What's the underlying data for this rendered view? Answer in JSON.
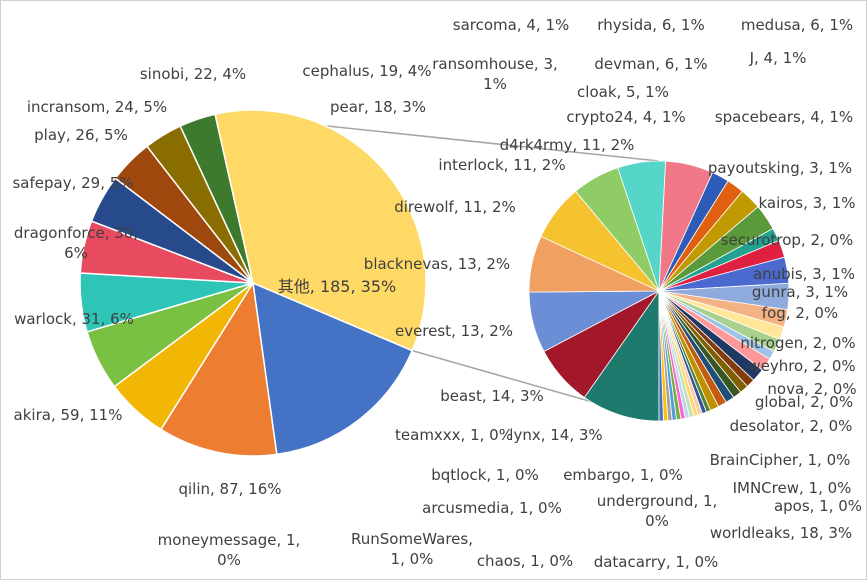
{
  "chart_data": {
    "type": "pie-of-pie",
    "title": "",
    "main": [
      {
        "name": "qilin",
        "value": 87,
        "pct": "16%",
        "color": "#4472c4",
        "label": "qilin, 87, 16%"
      },
      {
        "name": "akira",
        "value": 59,
        "pct": "11%",
        "color": "#ed7d31",
        "label": "akira, 59, 11%"
      },
      {
        "name": "warlock",
        "value": 31,
        "pct": "6%",
        "color": "#f2b705",
        "label": "warlock, 31, 6%"
      },
      {
        "name": "dragonforce",
        "value": 30,
        "pct": "6%",
        "color": "#7ac143",
        "label": "dragonforce, 30, 6%"
      },
      {
        "name": "safepay",
        "value": 29,
        "pct": "5%",
        "color": "#2ec4b6",
        "label": "safepay, 29, 5%"
      },
      {
        "name": "play",
        "value": 26,
        "pct": "5%",
        "color": "#e84a5f",
        "label": "play, 26, 5%"
      },
      {
        "name": "incransom",
        "value": 24,
        "pct": "5%",
        "color": "#264a8c",
        "label": "incransom, 24, 5%"
      },
      {
        "name": "sinobi",
        "value": 22,
        "pct": "4%",
        "color": "#9e480e",
        "label": "sinobi, 22, 4%"
      },
      {
        "name": "cephalus",
        "value": 19,
        "pct": "4%",
        "color": "#8a6d00",
        "label": "cephalus, 19, 4%"
      },
      {
        "name": "pear",
        "value": 18,
        "pct": "3%",
        "color": "#3e7a2e",
        "label": "pear, 18, 3%"
      },
      {
        "name": "其他",
        "value": 185,
        "pct": "35%",
        "color": "#ffd966",
        "label": "其他, 185, 35%"
      }
    ],
    "secondary": [
      {
        "name": "worldleaks",
        "value": 18,
        "pct": "3%",
        "color": "#1f7a6e",
        "label": "worldleaks, 18, 3%"
      },
      {
        "name": "lynx",
        "value": 14,
        "pct": "3%",
        "color": "#a3172b",
        "label": "lynx, 14, 3%"
      },
      {
        "name": "beast",
        "value": 14,
        "pct": "3%",
        "color": "#6b8ed6",
        "label": "beast, 14, 3%"
      },
      {
        "name": "everest",
        "value": 13,
        "pct": "2%",
        "color": "#f0a060",
        "label": "everest, 13, 2%"
      },
      {
        "name": "blacknevas",
        "value": 13,
        "pct": "2%",
        "color": "#f5c230",
        "label": "blacknevas, 13, 2%"
      },
      {
        "name": "direwolf",
        "value": 11,
        "pct": "2%",
        "color": "#8fcc66",
        "label": "direwolf, 11, 2%"
      },
      {
        "name": "interlock",
        "value": 11,
        "pct": "2%",
        "color": "#56d6c8",
        "label": "interlock, 11, 2%"
      },
      {
        "name": "d4rk4rmy",
        "value": 11,
        "pct": "2%",
        "color": "#f07888",
        "label": "d4rk4rmy, 11, 2%"
      },
      {
        "name": "spacebears",
        "value": 4,
        "pct": "1%",
        "color": "#2d5cb8",
        "label": "spacebears, 4, 1%"
      },
      {
        "name": "crypto24",
        "value": 4,
        "pct": "1%",
        "color": "#e06010",
        "label": "crypto24, 4, 1%"
      },
      {
        "name": "cloak",
        "value": 5,
        "pct": "1%",
        "color": "#c09a00",
        "label": "cloak, 5, 1%"
      },
      {
        "name": "devman",
        "value": 6,
        "pct": "1%",
        "color": "#5a9a3a",
        "label": "devman, 6, 1%"
      },
      {
        "name": "ransomhouse",
        "value": 3,
        "pct": "1%",
        "color": "#22a090",
        "label": "ransomhouse, 3, 1%"
      },
      {
        "name": "sarcoma",
        "value": 4,
        "pct": "1%",
        "color": "#e02040",
        "label": "sarcoma, 4, 1%"
      },
      {
        "name": "rhysida",
        "value": 6,
        "pct": "1%",
        "color": "#4a6ad0",
        "label": "rhysida, 6, 1%"
      },
      {
        "name": "medusa",
        "value": 6,
        "pct": "1%",
        "color": "#8faadc",
        "label": "medusa, 6, 1%"
      },
      {
        "name": "J",
        "value": 4,
        "pct": "1%",
        "color": "#f4b183",
        "label": "J, 4, 1%"
      },
      {
        "name": "payoutsking",
        "value": 3,
        "pct": "1%",
        "color": "#ffe699",
        "label": "payoutsking, 3, 1%"
      },
      {
        "name": "kairos",
        "value": 3,
        "pct": "1%",
        "color": "#a9d18e",
        "label": "kairos, 3, 1%"
      },
      {
        "name": "securotrop",
        "value": 2,
        "pct": "0%",
        "color": "#9dc3e6",
        "label": "securotrop, 2, 0%"
      },
      {
        "name": "anubis",
        "value": 3,
        "pct": "1%",
        "color": "#ff9999",
        "label": "anubis, 3, 1%"
      },
      {
        "name": "gunra",
        "value": 3,
        "pct": "1%",
        "color": "#203864",
        "label": "gunra, 3, 1%"
      },
      {
        "name": "nitrogen",
        "value": 2,
        "pct": "0%",
        "color": "#843c0c",
        "label": "nitrogen, 2, 0%"
      },
      {
        "name": "fog",
        "value": 2,
        "pct": "0%",
        "color": "#7f6000",
        "label": "fog, 2, 0%"
      },
      {
        "name": "weyhro",
        "value": 2,
        "pct": "0%",
        "color": "#385723",
        "label": "weyhro, 2, 0%"
      },
      {
        "name": "nova",
        "value": 2,
        "pct": "0%",
        "color": "#1f4e79",
        "label": "nova, 2, 0%"
      },
      {
        "name": "global",
        "value": 2,
        "pct": "0%",
        "color": "#c55a11",
        "label": "global, 2, 0%"
      },
      {
        "name": "desolator",
        "value": 2,
        "pct": "0%",
        "color": "#bf9000",
        "label": "desolator, 2, 0%"
      },
      {
        "name": "BrainCipher",
        "value": 1,
        "pct": "0%",
        "color": "#548235",
        "label": "BrainCipher, 1, 0%"
      },
      {
        "name": "IMNCrew",
        "value": 1,
        "pct": "0%",
        "color": "#2f5597",
        "label": "IMNCrew, 1, 0%"
      },
      {
        "name": "apos",
        "value": 1,
        "pct": "0%",
        "color": "#f8cbad",
        "label": "apos, 1, 0%"
      },
      {
        "name": "datacarry",
        "value": 1,
        "pct": "0%",
        "color": "#ffd966",
        "label": "datacarry, 1, 0%"
      },
      {
        "name": "chaos",
        "value": 1,
        "pct": "0%",
        "color": "#c5e0b4",
        "label": "chaos, 1, 0%"
      },
      {
        "name": "underground",
        "value": 1,
        "pct": "0%",
        "color": "#bdd7ee",
        "label": "underground, 1, 0%"
      },
      {
        "name": "embargo",
        "value": 1,
        "pct": "0%",
        "color": "#ff66cc",
        "label": "embargo, 1, 0%"
      },
      {
        "name": "RunSomeWares",
        "value": 1,
        "pct": "0%",
        "color": "#70ad47",
        "label": "RunSomeWares, 1, 0%"
      },
      {
        "name": "arcusmedia",
        "value": 1,
        "pct": "0%",
        "color": "#5b9bd5",
        "label": "arcusmedia, 1, 0%"
      },
      {
        "name": "bqtlock",
        "value": 1,
        "pct": "0%",
        "color": "#a5a5a5",
        "label": "bqtlock, 1, 0%"
      },
      {
        "name": "moneymessage",
        "value": 1,
        "pct": "0%",
        "color": "#ffc000",
        "label": "moneymessage, 1, 0%"
      },
      {
        "name": "teamxxx",
        "value": 1,
        "pct": "0%",
        "color": "#4472c4",
        "label": "teamxxx, 1, 0%"
      }
    ],
    "legend": "none",
    "grid": false
  }
}
